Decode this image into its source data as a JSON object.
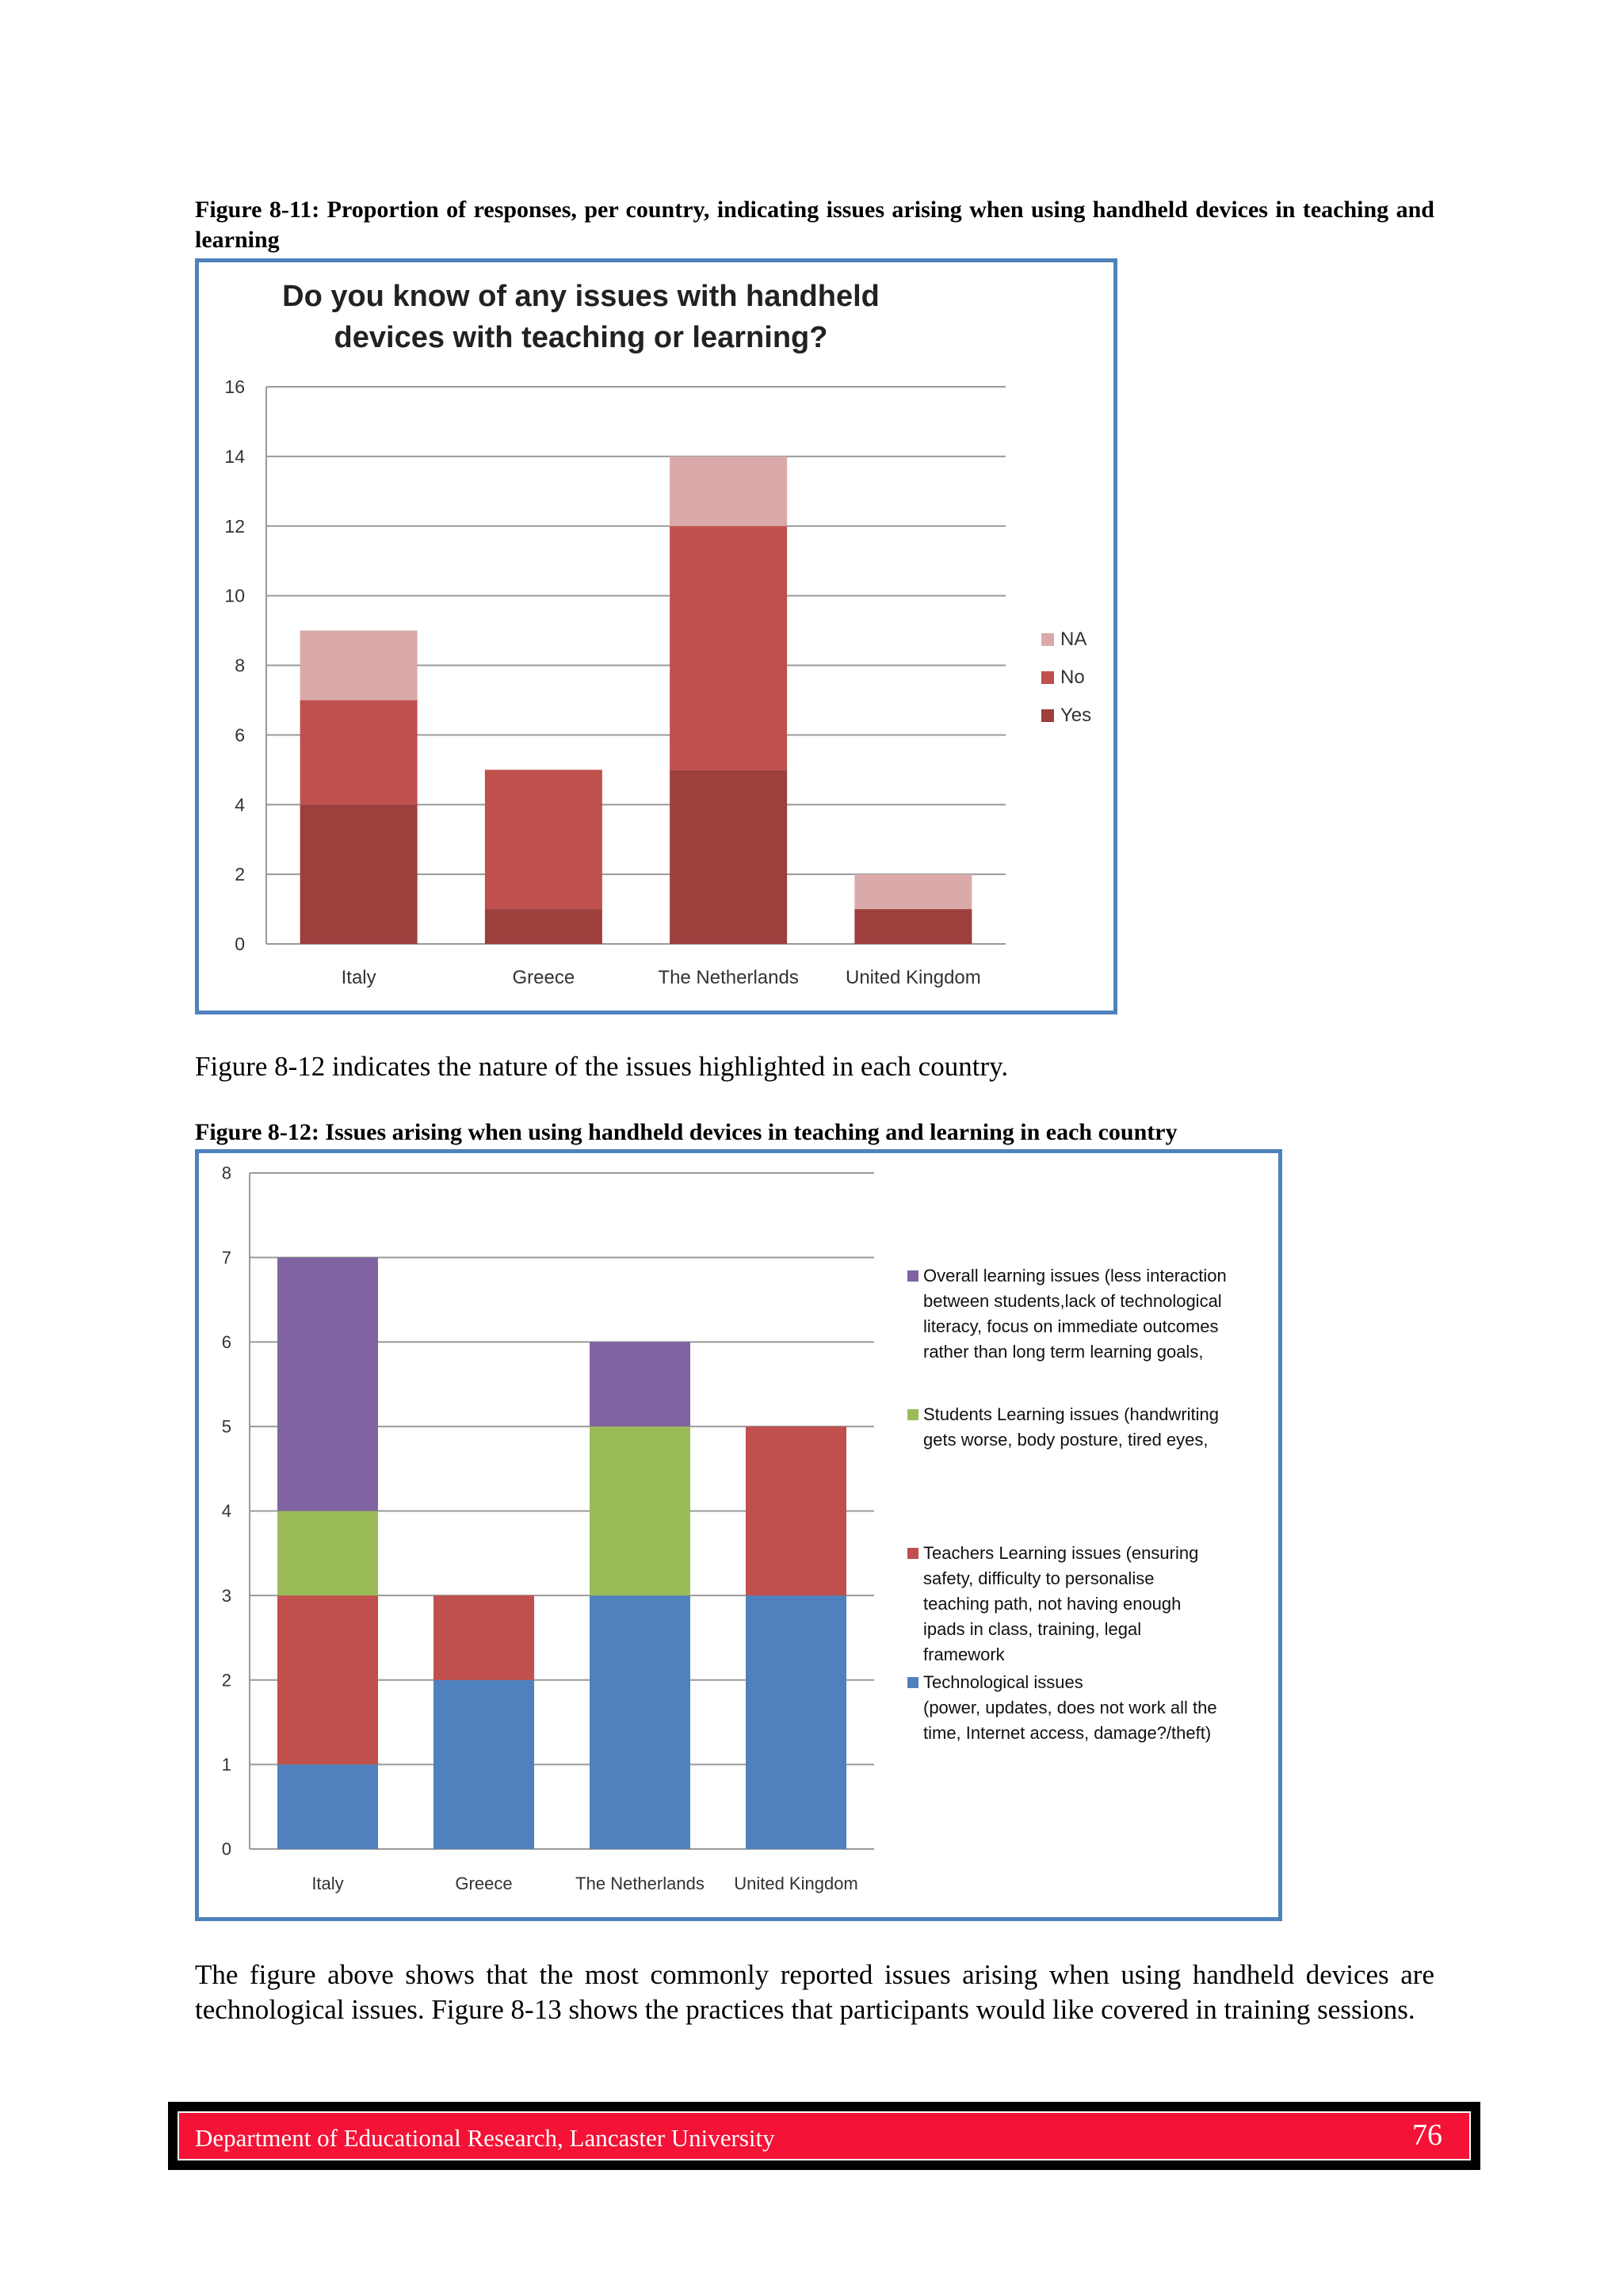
{
  "figure_11": {
    "caption": "Figure 8-11: Proportion of responses, per country, indicating issues arising when using handheld devices in teaching and learning"
  },
  "paragraph_1": "Figure 8-12 indicates the nature of the issues highlighted in each country.",
  "figure_12": {
    "caption": "Figure 8-12: Issues arising when using handheld devices in teaching and learning in each country"
  },
  "paragraph_2": "The figure above shows that the most commonly reported issues arising when using handheld devices are technological issues. Figure 8-13 shows the practices that participants would like covered in training sessions.",
  "footer": {
    "department": "Department of Educational Research, Lancaster University",
    "page_number": "76"
  },
  "chart_data": [
    {
      "type": "bar",
      "stacked": true,
      "title_lines": [
        "Do you know of any issues with handheld",
        "devices with teaching or learning?"
      ],
      "categories": [
        "Italy",
        "Greece",
        "The Netherlands",
        "United Kingdom"
      ],
      "series": [
        {
          "name": "Yes",
          "values": [
            4,
            1,
            5,
            1
          ],
          "color": "#9c3f3d"
        },
        {
          "name": "No",
          "values": [
            3,
            4,
            7,
            0
          ],
          "color": "#c0504d"
        },
        {
          "name": "NA",
          "values": [
            2,
            0,
            2,
            1
          ],
          "color": "#d9aaa9"
        }
      ],
      "legend_order": [
        "NA",
        "No",
        "Yes"
      ],
      "ylim": [
        0,
        16
      ],
      "yticks": [
        "0",
        "2",
        "4",
        "6",
        "8",
        "10",
        "12",
        "14",
        "16"
      ],
      "grid": true,
      "legend_position": "right"
    },
    {
      "type": "bar",
      "stacked": true,
      "categories": [
        "Italy",
        "Greece",
        "The Netherlands",
        "United Kingdom"
      ],
      "series": [
        {
          "name": "Technological issues (power, updates, does not work all the time, Internet access, damage?/theft)",
          "legend_lines": [
            "Technological issues",
            "(power, updates, does not work all the",
            "time, Internet access, damage?/theft)"
          ],
          "values": [
            1,
            2,
            3,
            3
          ],
          "color": "#4f81bd"
        },
        {
          "name": "Teachers Learning issues (ensuring safety, difficulty to personalise teaching path, not having enough ipads in class, training, legal framework",
          "legend_lines": [
            "Teachers Learning issues (ensuring",
            "safety, difficulty to personalise",
            "teaching path, not having enough",
            "ipads in class, training, legal",
            "framework"
          ],
          "values": [
            2,
            1,
            0,
            2
          ],
          "color": "#c0504d"
        },
        {
          "name": "Students Learning issues (handwriting gets worse, body posture, tired eyes,",
          "legend_lines": [
            "Students Learning issues (handwriting",
            "gets worse, body posture, tired eyes,"
          ],
          "values": [
            1,
            0,
            2,
            0
          ],
          "color": "#9bbb59"
        },
        {
          "name": "Overall learning issues (less interaction between students,lack of technological literacy, focus on immediate outcomes rather than long term learning goals,",
          "legend_lines": [
            "Overall learning issues (less interaction",
            "between students,lack of technological",
            "literacy, focus on immediate outcomes",
            "rather than long term learning goals,"
          ],
          "values": [
            3,
            0,
            1,
            0
          ],
          "color": "#8064a2"
        }
      ],
      "legend_order": [
        3,
        2,
        1,
        0
      ],
      "ylim": [
        0,
        8
      ],
      "yticks": [
        "0",
        "1",
        "2",
        "3",
        "4",
        "5",
        "6",
        "7",
        "8"
      ],
      "grid": true,
      "legend_position": "right"
    }
  ]
}
